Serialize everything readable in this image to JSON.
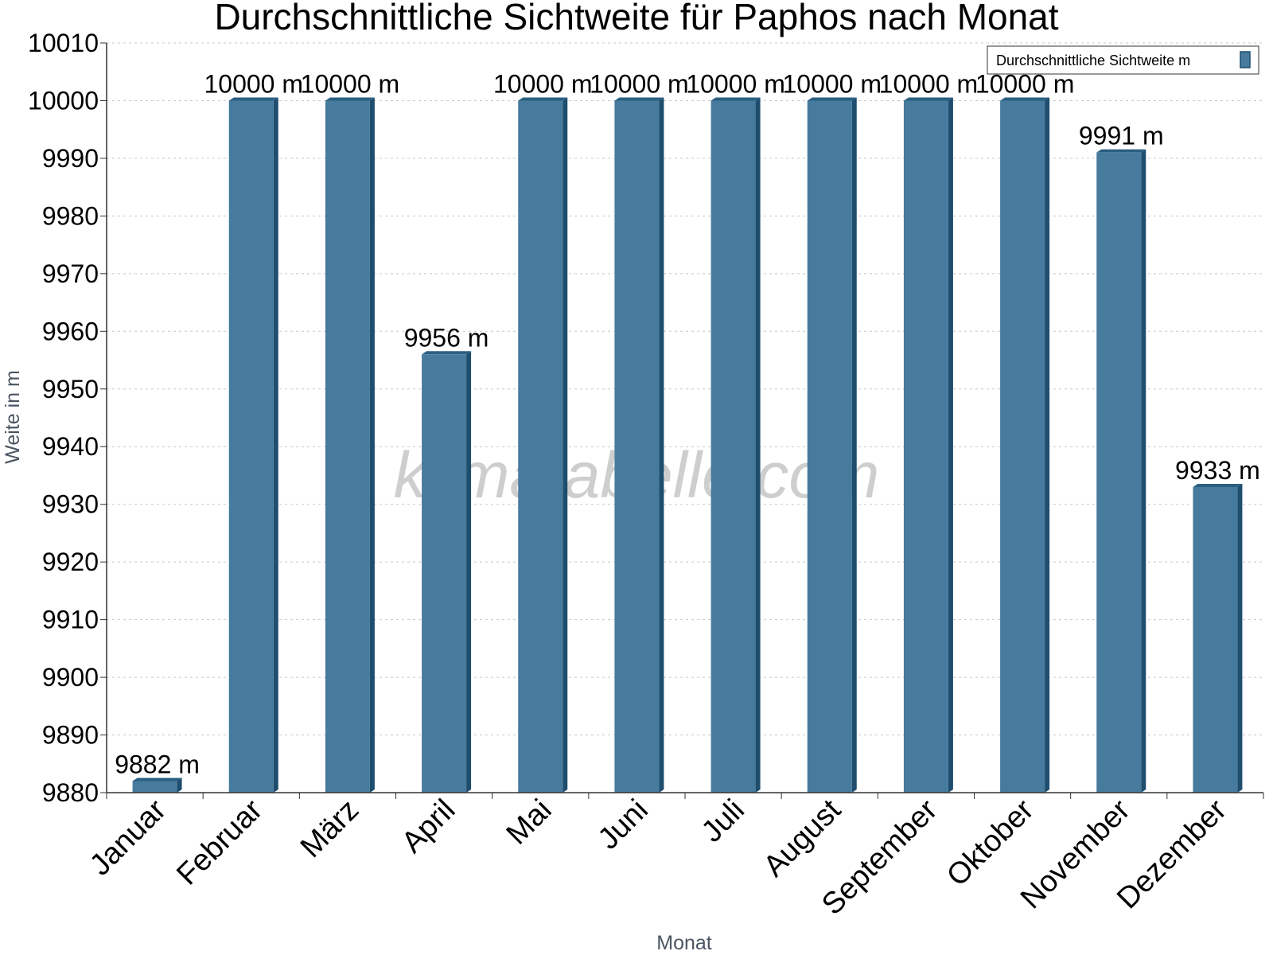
{
  "colors": {
    "bar_face": "#467b9d",
    "bar_side": "#1f4d6e",
    "bar_top": "#2b5f82",
    "grid": "#c8c8c8",
    "axis": "#333333"
  },
  "watermark": "klimatabelle.com",
  "chart_data": {
    "type": "bar",
    "title": "Durchschnittliche Sichtweite für Paphos nach Monat",
    "xlabel": "Monat",
    "ylabel": "Weite in m",
    "ylim": [
      9880,
      10010
    ],
    "yticks": [
      9880,
      9890,
      9900,
      9910,
      9920,
      9930,
      9940,
      9950,
      9960,
      9970,
      9980,
      9990,
      10000,
      10010
    ],
    "grid": true,
    "legend_position": "top-right",
    "categories": [
      "Januar",
      "Februar",
      "März",
      "April",
      "Mai",
      "Juni",
      "Juli",
      "August",
      "September",
      "Oktober",
      "November",
      "Dezember"
    ],
    "series": [
      {
        "name": "Durchschnittliche Sichtweite m",
        "values": [
          9882,
          10000,
          10000,
          9956,
          10000,
          10000,
          10000,
          10000,
          10000,
          10000,
          9991,
          9933
        ],
        "labels": [
          "9882 m",
          "10000 m",
          "10000 m",
          "9956 m",
          "10000 m",
          "10000 m",
          "10000 m",
          "10000 m",
          "10000 m",
          "10000 m",
          "9991 m",
          "9933 m"
        ]
      }
    ]
  }
}
